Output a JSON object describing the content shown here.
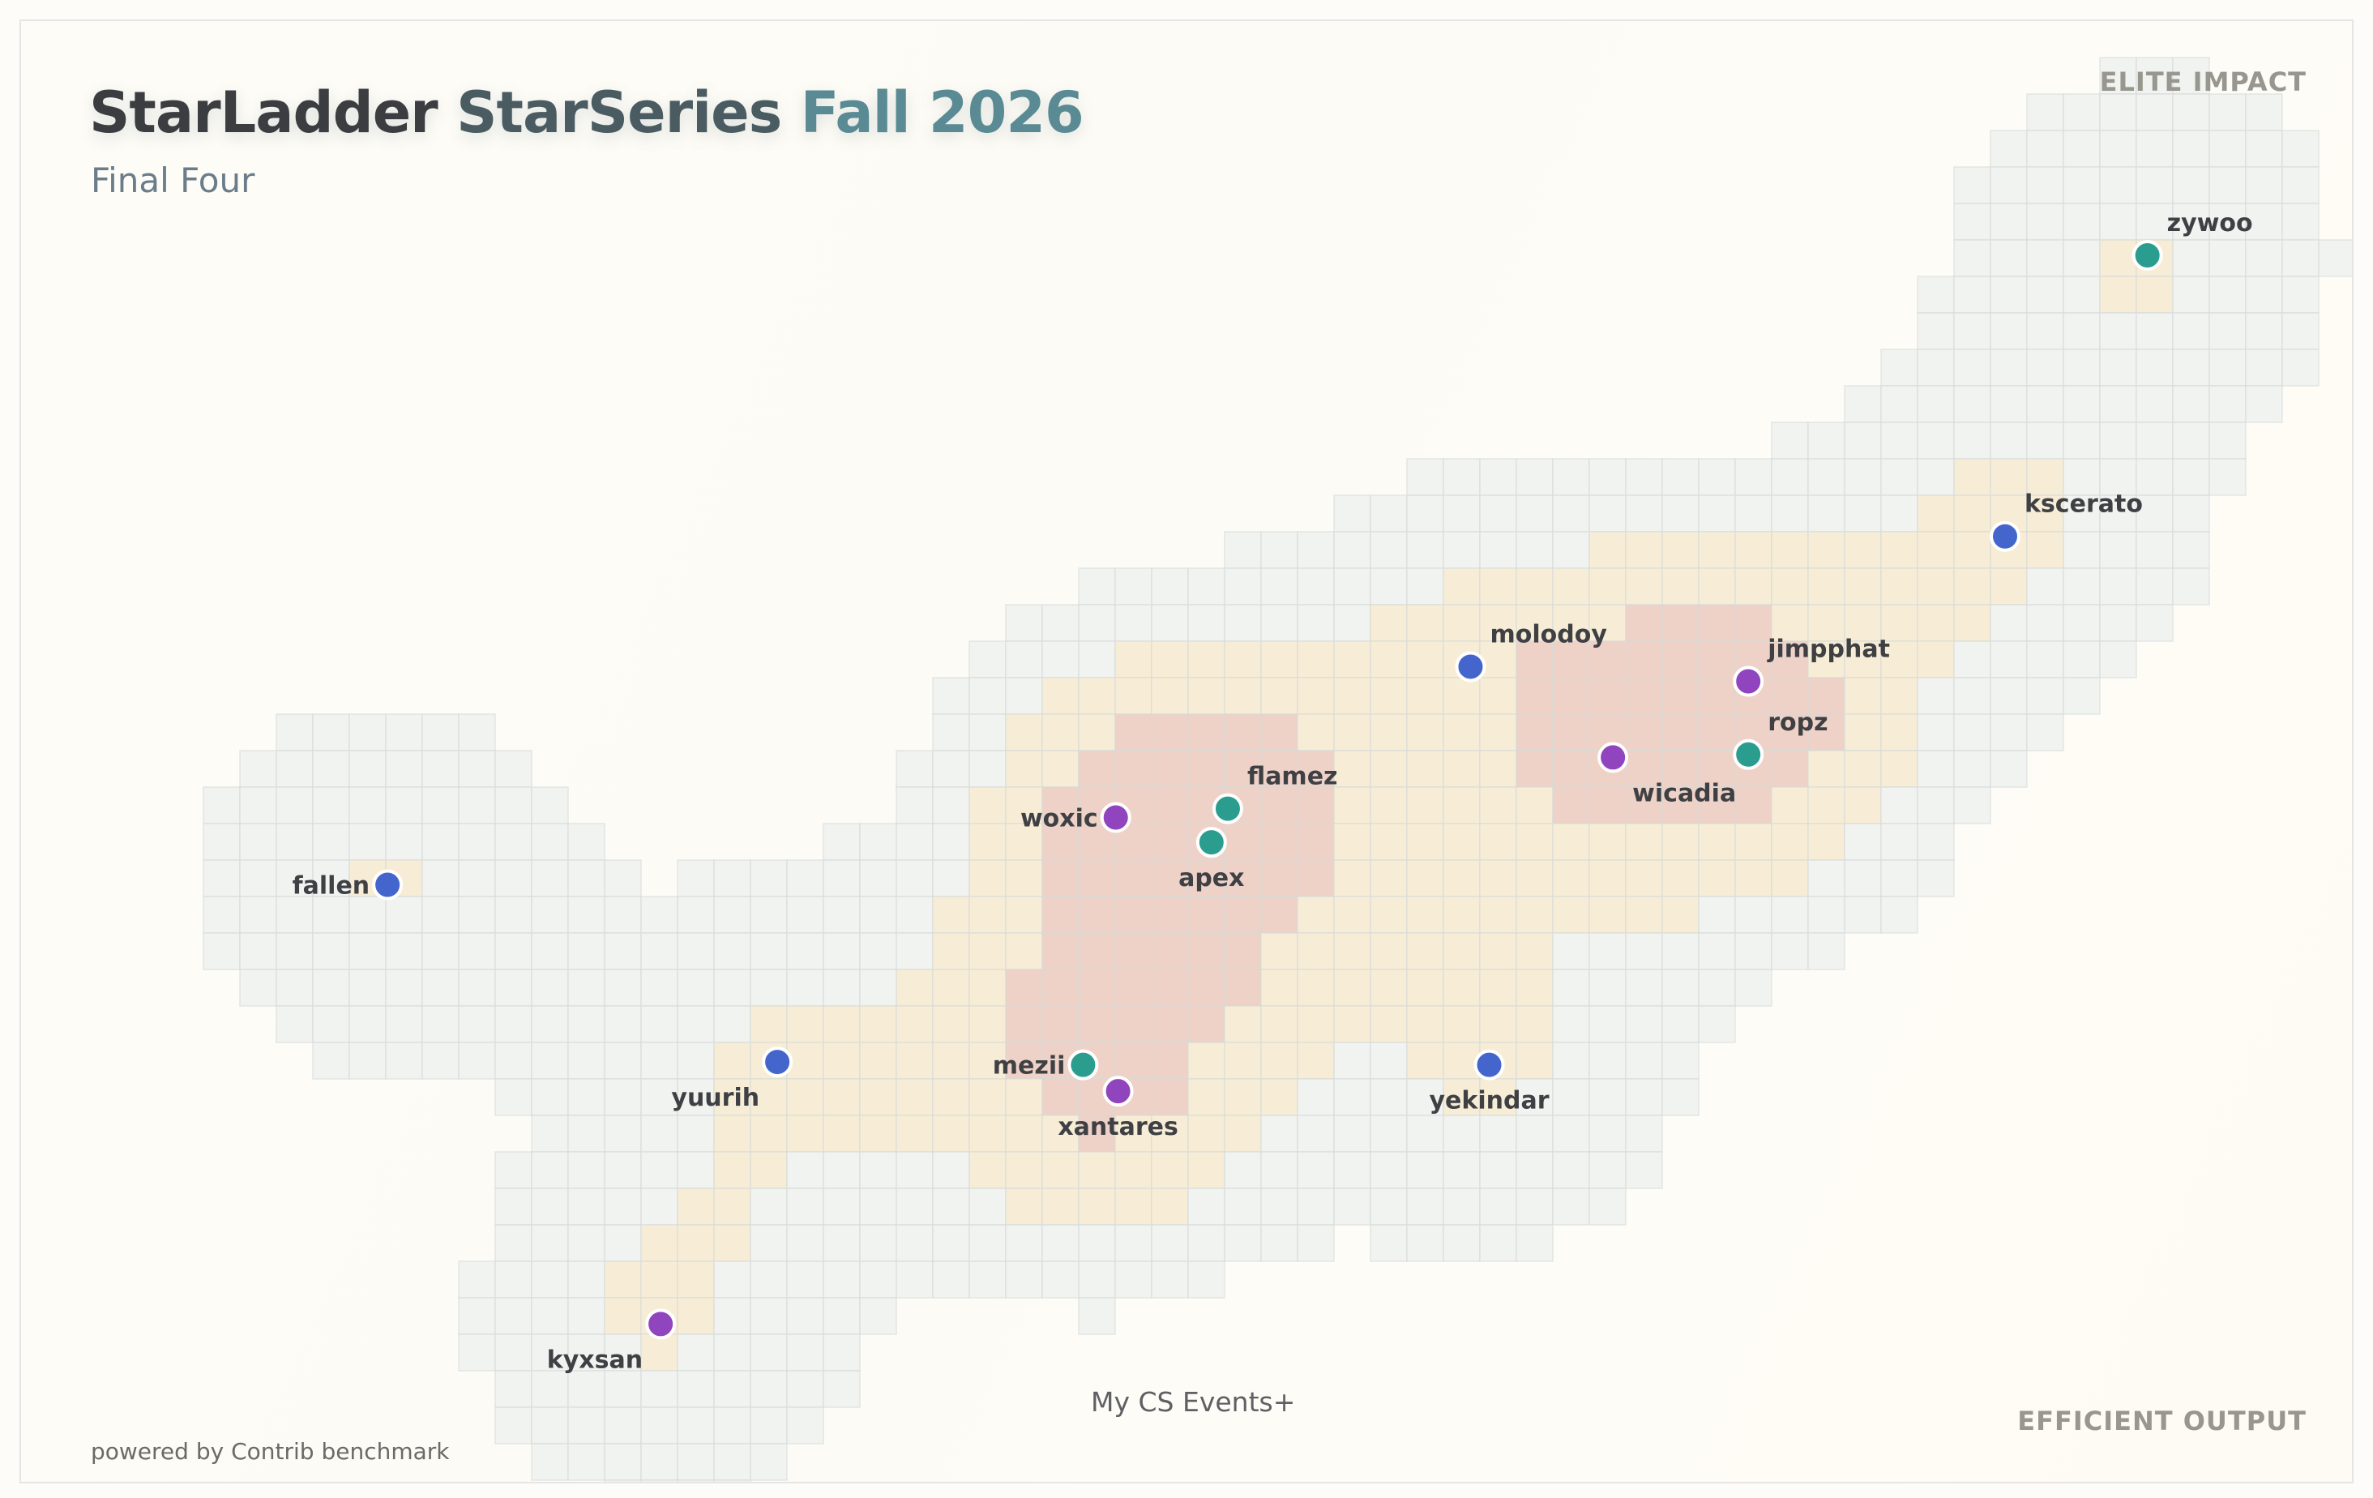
{
  "header": {
    "title_part1": "StarLadder",
    "title_part2": "StarSeries",
    "title_part3": "Fall 2026",
    "subtitle": "Final Four"
  },
  "corner_labels": {
    "top_right": "ELITE IMPACT",
    "bottom_right": "EFFICIENT OUTPUT"
  },
  "footer": {
    "powered_by": "powered by Contrib benchmark",
    "watermark": "My CS Events+"
  },
  "colors": {
    "blue": "#4466cc",
    "teal": "#2a9d8f",
    "purple": "#9045bf",
    "grid_line": "#d5dbd8",
    "density_low": "#eef1ee",
    "density_mid": "#f6ebd3",
    "density_high": "#eccdc3"
  },
  "chart_data": {
    "type": "scatter",
    "title": "StarLadder StarSeries Fall 2026",
    "subtitle": "Final Four",
    "xlabel": "",
    "ylabel": "",
    "xlim": [
      0,
      100
    ],
    "ylim": [
      0,
      100
    ],
    "grid": false,
    "background": "hexbin-density",
    "points": [
      {
        "name": "zywoo",
        "x": 91.1,
        "y": 84.0,
        "color": "teal",
        "label_pos": "above-right"
      },
      {
        "name": "kscerato",
        "x": 85.0,
        "y": 64.8,
        "color": "blue",
        "label_pos": "above-right"
      },
      {
        "name": "molodoy",
        "x": 62.1,
        "y": 55.9,
        "color": "blue",
        "label_pos": "above-right"
      },
      {
        "name": "jimpphat",
        "x": 74.0,
        "y": 54.9,
        "color": "purple",
        "label_pos": "above-right"
      },
      {
        "name": "ropz",
        "x": 74.0,
        "y": 49.9,
        "color": "teal",
        "label_pos": "above-right"
      },
      {
        "name": "wicadia",
        "x": 68.2,
        "y": 49.7,
        "color": "purple",
        "label_pos": "below-right"
      },
      {
        "name": "flamez",
        "x": 51.7,
        "y": 46.2,
        "color": "teal",
        "label_pos": "above-right"
      },
      {
        "name": "woxic",
        "x": 46.9,
        "y": 45.6,
        "color": "purple",
        "label_pos": "left"
      },
      {
        "name": "apex",
        "x": 51.0,
        "y": 43.9,
        "color": "teal",
        "label_pos": "below"
      },
      {
        "name": "fallen",
        "x": 15.7,
        "y": 41.0,
        "color": "blue",
        "label_pos": "left"
      },
      {
        "name": "yuurih",
        "x": 32.4,
        "y": 28.9,
        "color": "blue",
        "label_pos": "below-left"
      },
      {
        "name": "mezii",
        "x": 45.5,
        "y": 28.7,
        "color": "teal",
        "label_pos": "left"
      },
      {
        "name": "yekindar",
        "x": 62.9,
        "y": 28.7,
        "color": "blue",
        "label_pos": "below"
      },
      {
        "name": "xantares",
        "x": 47.0,
        "y": 26.9,
        "color": "purple",
        "label_pos": "below"
      },
      {
        "name": "kyxsan",
        "x": 27.4,
        "y": 11.0,
        "color": "purple",
        "label_pos": "below-left"
      }
    ]
  }
}
